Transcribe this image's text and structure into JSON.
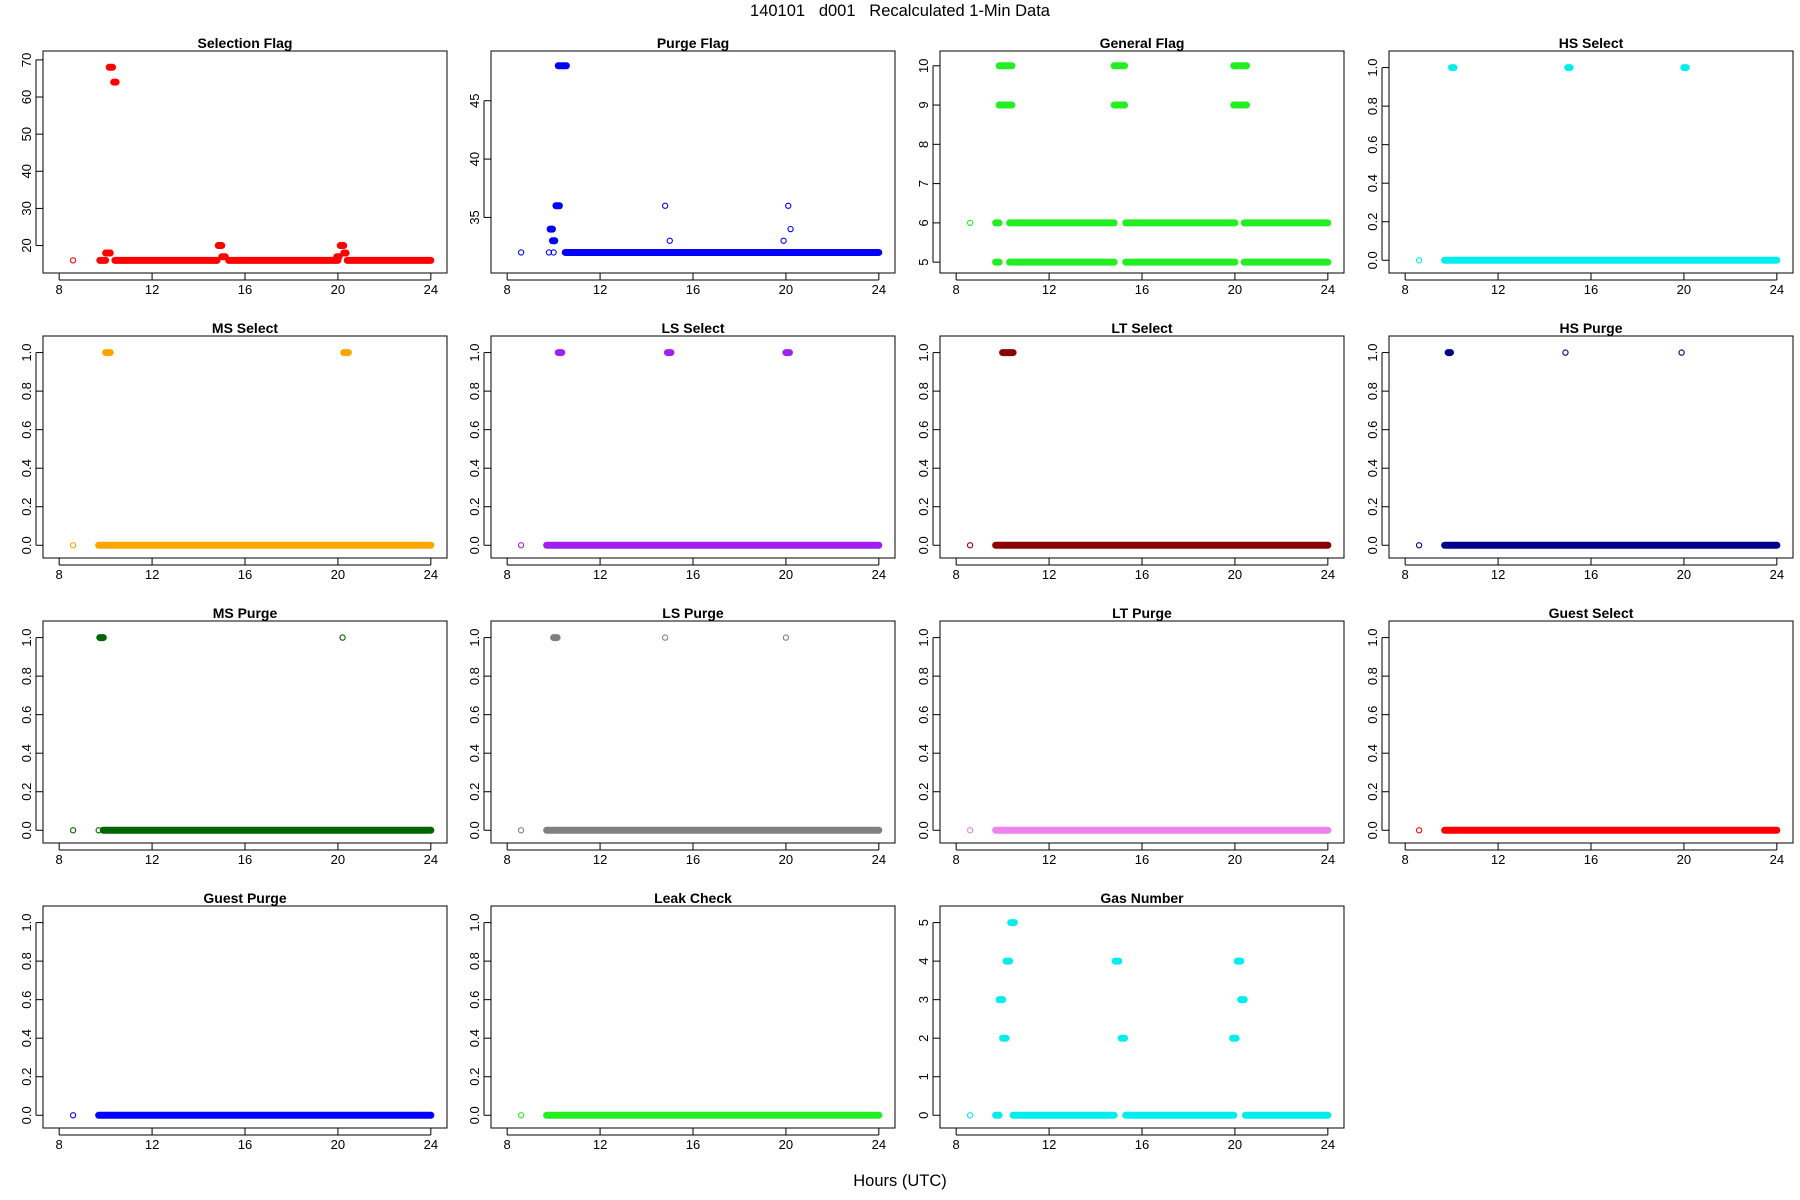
{
  "figure": {
    "title": "140101   d001   Recalculated 1-Min Data",
    "xlabel": "Hours (UTC)"
  },
  "chart_data": [
    {
      "type": "scatter",
      "title": "Selection Flag",
      "color": "#ff0000",
      "xlim": [
        8,
        24
      ],
      "ylim": [
        15,
        70
      ],
      "xticks": [
        8,
        12,
        16,
        20,
        24
      ],
      "yticks": [
        20,
        30,
        40,
        50,
        60,
        70
      ],
      "isolated": [
        [
          8.6,
          16
        ]
      ],
      "segments": [
        [
          9.75,
          10.0,
          16
        ],
        [
          10.4,
          14.8,
          16
        ],
        [
          15.3,
          20.0,
          16
        ],
        [
          20.4,
          24.0,
          16
        ],
        [
          10.0,
          10.2,
          18
        ],
        [
          10.15,
          10.3,
          68
        ],
        [
          10.35,
          10.45,
          64
        ],
        [
          14.85,
          15.0,
          20
        ],
        [
          15.0,
          15.15,
          17
        ],
        [
          20.1,
          20.25,
          20
        ],
        [
          20.25,
          20.35,
          18
        ],
        [
          19.95,
          20.05,
          17
        ]
      ]
    },
    {
      "type": "scatter",
      "title": "Purge Flag",
      "color": "#0000ff",
      "xlim": [
        8,
        24
      ],
      "ylim": [
        31,
        48.5
      ],
      "xticks": [
        8,
        12,
        16,
        20,
        24
      ],
      "yticks": [
        35,
        40,
        45
      ],
      "isolated": [
        [
          8.6,
          32
        ],
        [
          9.8,
          32
        ],
        [
          10.0,
          32
        ],
        [
          14.8,
          36
        ],
        [
          15.0,
          33
        ],
        [
          19.9,
          33
        ],
        [
          20.1,
          36
        ],
        [
          20.2,
          34
        ]
      ],
      "segments": [
        [
          10.5,
          24.0,
          32
        ],
        [
          10.2,
          10.55,
          48
        ],
        [
          10.1,
          10.25,
          36
        ],
        [
          9.85,
          9.95,
          34
        ],
        [
          9.95,
          10.05,
          33
        ]
      ]
    },
    {
      "type": "scatter",
      "title": "General Flag",
      "color": "#22ee22",
      "xlim": [
        8,
        24
      ],
      "ylim": [
        4.95,
        10.15
      ],
      "xticks": [
        8,
        12,
        16,
        20,
        24
      ],
      "yticks": [
        5,
        6,
        7,
        8,
        9,
        10
      ],
      "isolated": [
        [
          8.6,
          6
        ]
      ],
      "segments": [
        [
          9.7,
          9.85,
          5
        ],
        [
          10.3,
          14.8,
          5
        ],
        [
          15.3,
          20.0,
          5
        ],
        [
          20.4,
          24.0,
          5
        ],
        [
          9.7,
          9.85,
          6
        ],
        [
          10.3,
          14.8,
          6
        ],
        [
          15.3,
          20.0,
          6
        ],
        [
          20.4,
          24.0,
          6
        ],
        [
          9.85,
          10.4,
          9
        ],
        [
          14.8,
          15.25,
          9
        ],
        [
          19.95,
          20.5,
          9
        ],
        [
          9.85,
          10.4,
          10
        ],
        [
          14.8,
          15.25,
          10
        ],
        [
          19.95,
          20.5,
          10
        ]
      ]
    },
    {
      "type": "scatter",
      "title": "HS Select",
      "color": "#00eeee",
      "xlim": [
        8,
        24
      ],
      "ylim": [
        -0.02,
        1.04
      ],
      "xticks": [
        8,
        12,
        16,
        20,
        24
      ],
      "yticks": [
        0.0,
        0.2,
        0.4,
        0.6,
        0.8,
        1.0
      ],
      "isolated": [
        [
          8.6,
          0
        ]
      ],
      "segments": [
        [
          9.7,
          24.0,
          0
        ],
        [
          10.0,
          10.1,
          1
        ],
        [
          15.0,
          15.1,
          1
        ],
        [
          20.0,
          20.1,
          1
        ]
      ]
    },
    {
      "type": "scatter",
      "title": "MS Select",
      "color": "#ffa500",
      "xlim": [
        8,
        24
      ],
      "ylim": [
        -0.02,
        1.04
      ],
      "xticks": [
        8,
        12,
        16,
        20,
        24
      ],
      "yticks": [
        0.0,
        0.2,
        0.4,
        0.6,
        0.8,
        1.0
      ],
      "isolated": [
        [
          8.6,
          0
        ]
      ],
      "segments": [
        [
          9.7,
          24.0,
          0
        ],
        [
          10.0,
          10.2,
          1
        ],
        [
          20.25,
          20.45,
          1
        ]
      ]
    },
    {
      "type": "scatter",
      "title": "LS Select",
      "color": "#a020f0",
      "xlim": [
        8,
        24
      ],
      "ylim": [
        -0.02,
        1.04
      ],
      "xticks": [
        8,
        12,
        16,
        20,
        24
      ],
      "yticks": [
        0.0,
        0.2,
        0.4,
        0.6,
        0.8,
        1.0
      ],
      "isolated": [
        [
          8.6,
          0
        ]
      ],
      "segments": [
        [
          9.7,
          24.0,
          0
        ],
        [
          10.2,
          10.35,
          1
        ],
        [
          14.9,
          15.05,
          1
        ],
        [
          20.0,
          20.15,
          1
        ]
      ]
    },
    {
      "type": "scatter",
      "title": "LT Select",
      "color": "#8b0000",
      "xlim": [
        8,
        24
      ],
      "ylim": [
        -0.02,
        1.04
      ],
      "xticks": [
        8,
        12,
        16,
        20,
        24
      ],
      "yticks": [
        0.0,
        0.2,
        0.4,
        0.6,
        0.8,
        1.0
      ],
      "isolated": [
        [
          8.6,
          0
        ]
      ],
      "segments": [
        [
          9.7,
          24.0,
          0
        ],
        [
          10.0,
          10.45,
          1
        ]
      ]
    },
    {
      "type": "scatter",
      "title": "HS Purge",
      "color": "#00008b",
      "xlim": [
        8,
        24
      ],
      "ylim": [
        -0.02,
        1.04
      ],
      "xticks": [
        8,
        12,
        16,
        20,
        24
      ],
      "yticks": [
        0.0,
        0.2,
        0.4,
        0.6,
        0.8,
        1.0
      ],
      "isolated": [
        [
          8.6,
          0
        ],
        [
          14.9,
          1
        ],
        [
          19.9,
          1
        ]
      ],
      "segments": [
        [
          9.7,
          24.0,
          0
        ],
        [
          9.85,
          9.95,
          1
        ]
      ]
    },
    {
      "type": "scatter",
      "title": "MS Purge",
      "color": "#006400",
      "xlim": [
        8,
        24
      ],
      "ylim": [
        -0.02,
        1.04
      ],
      "xticks": [
        8,
        12,
        16,
        20,
        24
      ],
      "yticks": [
        0.0,
        0.2,
        0.4,
        0.6,
        0.8,
        1.0
      ],
      "isolated": [
        [
          8.6,
          0
        ],
        [
          9.7,
          0
        ],
        [
          20.2,
          1
        ]
      ],
      "segments": [
        [
          9.9,
          24.0,
          0
        ],
        [
          9.75,
          9.9,
          1
        ]
      ]
    },
    {
      "type": "scatter",
      "title": "LS Purge",
      "color": "#808080",
      "xlim": [
        8,
        24
      ],
      "ylim": [
        -0.02,
        1.04
      ],
      "xticks": [
        8,
        12,
        16,
        20,
        24
      ],
      "yticks": [
        0.0,
        0.2,
        0.4,
        0.6,
        0.8,
        1.0
      ],
      "isolated": [
        [
          8.6,
          0
        ],
        [
          14.8,
          1
        ],
        [
          20.0,
          1
        ]
      ],
      "segments": [
        [
          9.7,
          24.0,
          0
        ],
        [
          10.0,
          10.15,
          1
        ]
      ]
    },
    {
      "type": "scatter",
      "title": "LT Purge",
      "color": "#ee82ee",
      "xlim": [
        8,
        24
      ],
      "ylim": [
        -0.02,
        1.04
      ],
      "xticks": [
        8,
        12,
        16,
        20,
        24
      ],
      "yticks": [
        0.0,
        0.2,
        0.4,
        0.6,
        0.8,
        1.0
      ],
      "isolated": [
        [
          8.6,
          0
        ]
      ],
      "segments": [
        [
          9.7,
          24.0,
          0
        ]
      ]
    },
    {
      "type": "scatter",
      "title": "Guest Select",
      "color": "#ff0000",
      "xlim": [
        8,
        24
      ],
      "ylim": [
        -0.02,
        1.04
      ],
      "xticks": [
        8,
        12,
        16,
        20,
        24
      ],
      "yticks": [
        0.0,
        0.2,
        0.4,
        0.6,
        0.8,
        1.0
      ],
      "isolated": [
        [
          8.6,
          0
        ]
      ],
      "segments": [
        [
          9.7,
          24.0,
          0
        ]
      ]
    },
    {
      "type": "scatter",
      "title": "Guest Purge",
      "color": "#0000ff",
      "xlim": [
        8,
        24
      ],
      "ylim": [
        -0.02,
        1.04
      ],
      "xticks": [
        8,
        12,
        16,
        20,
        24
      ],
      "yticks": [
        0.0,
        0.2,
        0.4,
        0.6,
        0.8,
        1.0
      ],
      "isolated": [
        [
          8.6,
          0
        ]
      ],
      "segments": [
        [
          9.7,
          24.0,
          0
        ]
      ]
    },
    {
      "type": "scatter",
      "title": "Leak Check",
      "color": "#22ee22",
      "xlim": [
        8,
        24
      ],
      "ylim": [
        -0.02,
        1.04
      ],
      "xticks": [
        8,
        12,
        16,
        20,
        24
      ],
      "yticks": [
        0.0,
        0.2,
        0.4,
        0.6,
        0.8,
        1.0
      ],
      "isolated": [
        [
          8.6,
          0
        ]
      ],
      "segments": [
        [
          9.7,
          24.0,
          0
        ]
      ]
    },
    {
      "type": "scatter",
      "title": "Gas Number",
      "color": "#00eeee",
      "xlim": [
        8,
        24
      ],
      "ylim": [
        -0.1,
        5.2
      ],
      "xticks": [
        8,
        12,
        16,
        20,
        24
      ],
      "yticks": [
        0,
        1,
        2,
        3,
        4,
        5
      ],
      "isolated": [
        [
          8.6,
          0
        ]
      ],
      "segments": [
        [
          9.7,
          9.85,
          0
        ],
        [
          10.45,
          14.8,
          0
        ],
        [
          15.3,
          19.95,
          0
        ],
        [
          20.45,
          24.0,
          0
        ],
        [
          9.85,
          10.0,
          3
        ],
        [
          10.0,
          10.15,
          2
        ],
        [
          10.15,
          10.3,
          4
        ],
        [
          10.35,
          10.5,
          5
        ],
        [
          14.85,
          15.0,
          4
        ],
        [
          15.1,
          15.25,
          2
        ],
        [
          19.9,
          20.05,
          2
        ],
        [
          20.1,
          20.25,
          4
        ],
        [
          20.25,
          20.4,
          3
        ]
      ]
    }
  ]
}
